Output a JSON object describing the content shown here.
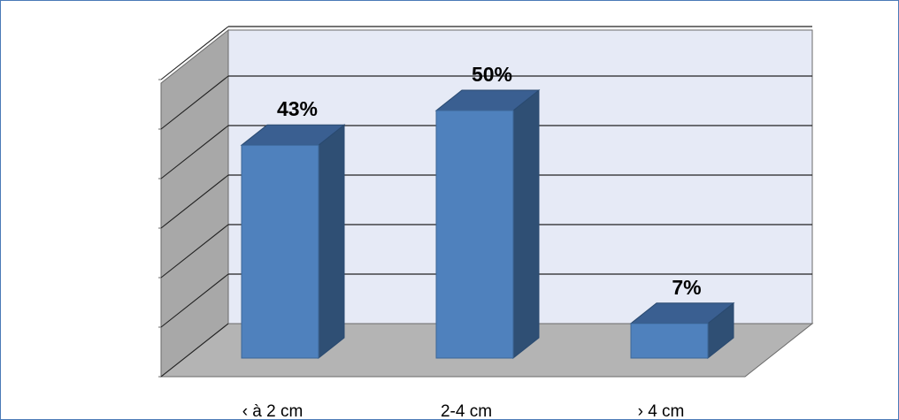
{
  "chart_data": {
    "type": "bar",
    "categories": [
      "‹ à 2 cm",
      "2-4 cm",
      "› 4 cm"
    ],
    "values": [
      43,
      50,
      7
    ],
    "labels": [
      "43%",
      "50%",
      "7%"
    ],
    "unit": "%",
    "ylim": [
      0,
      60
    ],
    "grid": true,
    "style": "3d-column",
    "colors": {
      "bar_front": "#4f81bd",
      "bar_side": "#2f4f74",
      "bar_top": "#3a5f91",
      "wall": "#e6eaf6",
      "side_wall": "#a8a8a8",
      "floor": "#b4b4b4",
      "gridline": "#222222",
      "frame": "#4a7ab7"
    }
  }
}
